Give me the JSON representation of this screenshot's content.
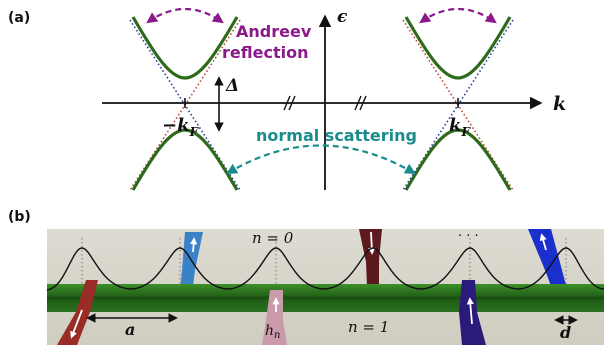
{
  "panel_a": {
    "label": "(a)",
    "axis_y_label": "ϵ",
    "axis_x_label": "k",
    "gap_label": "Δ",
    "left_fermi_label": "−k",
    "right_fermi_label": "k",
    "fermi_subscript": "F",
    "andreev_line1": "Andreev",
    "andreev_line2": "reflection",
    "normal_label": "normal scattering"
  },
  "panel_b": {
    "label": "(b)",
    "n0_label": "n = 0",
    "n1_label": "n = 1",
    "dots_label": "· · ·",
    "spacing_label": "a",
    "hn_label": "h",
    "hn_subscript": "n",
    "width_label": "d"
  },
  "colors": {
    "dispersion": "#2d6a1a",
    "dotted_red": "#b5473a",
    "dotted_blue": "#2a3a9a",
    "andreev": "#8a1a8a",
    "normal": "#1a8c8c",
    "chain": "#2f7a1e",
    "background_b": "#d9d8cc",
    "spin_red": "#9a2b26",
    "spin_blue": "#3a82c8",
    "spin_pink": "#c99aaa",
    "spin_darkred": "#5a1a1e",
    "spin_indigo": "#2a1a7a",
    "spin_deepblue": "#1a2fcc"
  }
}
